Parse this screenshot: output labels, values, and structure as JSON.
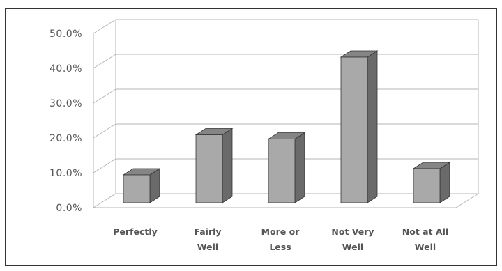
{
  "chart_data": {
    "type": "bar",
    "categories": [
      [
        "Perfectly"
      ],
      [
        "Fairly",
        "Well"
      ],
      [
        "More or",
        "Less"
      ],
      [
        "Not Very",
        "Well"
      ],
      [
        "Not at All",
        "Well"
      ]
    ],
    "values": [
      8.0,
      19.5,
      18.3,
      41.8,
      9.8
    ],
    "y_ticks": [
      "0.0%",
      "10.0%",
      "20.0%",
      "30.0%",
      "40.0%",
      "50.0%"
    ],
    "ylim": [
      0,
      50
    ],
    "grid": true,
    "style": "3d-bar",
    "colors": {
      "bar_front": "#a9a9a9",
      "bar_side": "#6a6a6a",
      "bar_top": "#858585",
      "grid": "#b5b5b5",
      "frame": "#333333"
    }
  }
}
